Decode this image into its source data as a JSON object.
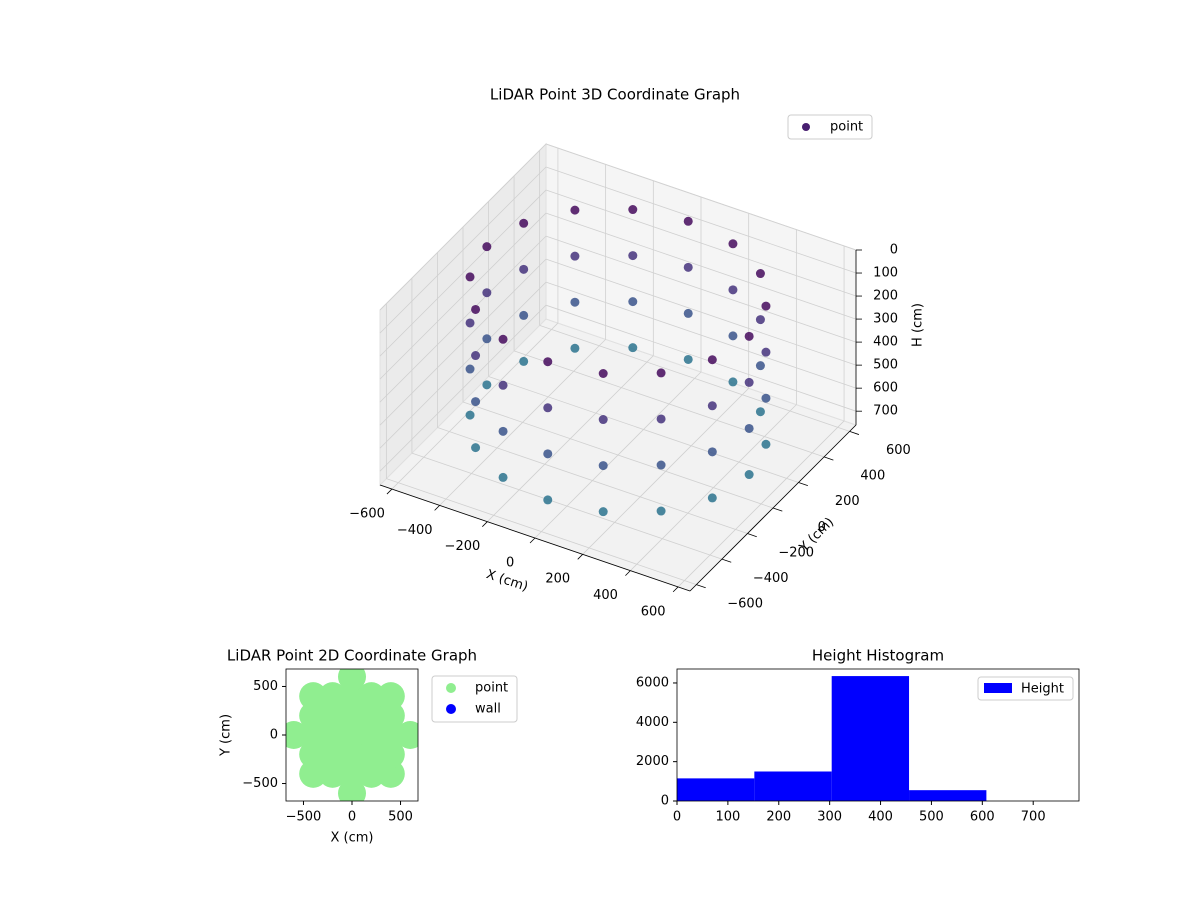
{
  "chart_data": [
    {
      "type": "scatter3d",
      "title": "LiDAR Point 3D Coordinate Graph",
      "xlabel": "X (cm)",
      "ylabel": "Y (cm)",
      "zlabel": "H (cm)",
      "xlim": [
        -650,
        650
      ],
      "ylim": [
        -650,
        650
      ],
      "zlim": [
        0,
        760
      ],
      "z_inverted": true,
      "xticks": [
        {
          "value": -600,
          "label": "−600"
        },
        {
          "value": -400,
          "label": "−400"
        },
        {
          "value": -200,
          "label": "−200"
        },
        0,
        200,
        400,
        600
      ],
      "yticks": [
        {
          "value": -600,
          "label": "−600"
        },
        {
          "value": -400,
          "label": "−400"
        },
        {
          "value": -200,
          "label": "−200"
        },
        0,
        200,
        400,
        600
      ],
      "zticks": [
        0,
        100,
        200,
        300,
        400,
        500,
        600,
        700
      ],
      "colormap": "viridis",
      "legend": "upper right",
      "series": [
        {
          "name": "point",
          "color": "#481f70",
          "x": [
            550,
            508,
            389,
            210,
            0,
            -210,
            -389,
            -508,
            -550,
            -508,
            -389,
            -210,
            0,
            210,
            389,
            508,
            550,
            508,
            389,
            210,
            0,
            -210,
            -389,
            -508,
            -550,
            -508,
            -389,
            -210,
            0,
            210,
            389,
            508,
            550,
            508,
            389,
            210,
            0,
            -210,
            -389,
            -508,
            -550,
            -508,
            -389,
            -210,
            0,
            210,
            389,
            508,
            550,
            508,
            389,
            210,
            0,
            -210,
            -389,
            -508,
            -550,
            -508,
            -389,
            -210,
            0,
            210,
            389,
            508
          ],
          "y": [
            0,
            210,
            389,
            508,
            550,
            508,
            389,
            210,
            0,
            -210,
            -389,
            -508,
            -550,
            -508,
            -389,
            -210,
            0,
            210,
            389,
            508,
            550,
            508,
            389,
            210,
            0,
            -210,
            -389,
            -508,
            -550,
            -508,
            -389,
            -210,
            0,
            210,
            389,
            508,
            550,
            508,
            389,
            210,
            0,
            -210,
            -389,
            -508,
            -550,
            -508,
            -389,
            -210,
            0,
            210,
            389,
            508,
            550,
            508,
            389,
            210,
            0,
            -210,
            -389,
            -508,
            -550,
            -508,
            -389,
            -210
          ],
          "z": [
            50,
            50,
            50,
            50,
            50,
            50,
            50,
            50,
            50,
            50,
            50,
            50,
            50,
            50,
            50,
            50,
            250,
            250,
            250,
            250,
            250,
            250,
            250,
            250,
            250,
            250,
            250,
            250,
            250,
            250,
            250,
            250,
            450,
            450,
            450,
            450,
            450,
            450,
            450,
            450,
            450,
            450,
            450,
            450,
            450,
            450,
            450,
            450,
            650,
            650,
            650,
            650,
            650,
            650,
            650,
            650,
            650,
            650,
            650,
            650,
            650,
            650,
            650,
            650
          ]
        }
      ]
    },
    {
      "type": "scatter",
      "title": "LiDAR Point 2D Coordinate Graph",
      "xlabel": "X (cm)",
      "ylabel": "Y (cm)",
      "xlim": [
        -680,
        680
      ],
      "ylim": [
        -680,
        680
      ],
      "xticks": [
        {
          "value": -500,
          "label": "−500"
        },
        0,
        500
      ],
      "yticks": [
        {
          "value": -500,
          "label": "−500"
        },
        0,
        500
      ],
      "legend": "outside right",
      "series": [
        {
          "name": "point",
          "color": "#90ee90",
          "x": [
            -600,
            -400,
            -400,
            -400,
            -400,
            -400,
            -200,
            -200,
            -200,
            -200,
            -200,
            0,
            0,
            0,
            0,
            0,
            0,
            0,
            200,
            200,
            200,
            200,
            200,
            400,
            400,
            400,
            400,
            400,
            600
          ],
          "y": [
            0,
            -400,
            -200,
            0,
            200,
            400,
            -400,
            -200,
            0,
            200,
            400,
            -600,
            -400,
            -200,
            0,
            200,
            400,
            600,
            -400,
            -200,
            0,
            200,
            400,
            -400,
            -200,
            0,
            200,
            400,
            0
          ]
        },
        {
          "name": "wall",
          "color": "#0000ff",
          "x": [],
          "y": []
        }
      ]
    },
    {
      "type": "histogram",
      "title": "Height Histogram",
      "bins": [
        0,
        152,
        304,
        456,
        608
      ],
      "values": [
        1150,
        1500,
        6350,
        550
      ],
      "series_name": "Height",
      "color": "#0000ff",
      "legend": "upper right",
      "xlim": [
        0,
        790
      ],
      "ylim": [
        0,
        6710
      ],
      "xticks": [
        0,
        100,
        200,
        300,
        400,
        500,
        600,
        700
      ],
      "yticks": [
        0,
        2000,
        4000,
        6000
      ]
    }
  ]
}
